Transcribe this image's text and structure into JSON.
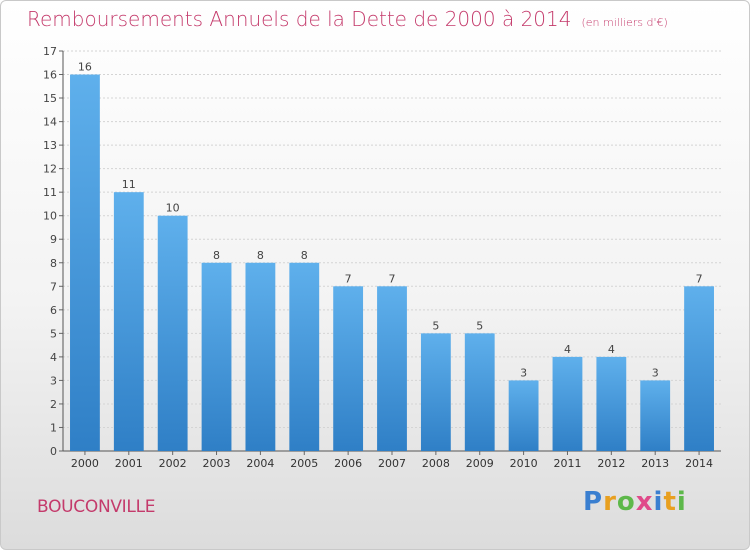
{
  "header": {
    "title": "Remboursements Annuels de la Dette de 2000 à 2014",
    "unit": "(en milliers d'€)"
  },
  "footer": {
    "commune": "BOUCONVILLE",
    "logo_letters": [
      "P",
      "r",
      "o",
      "x",
      "i",
      "t",
      "i"
    ],
    "logo_colors": [
      "#3a7fd0",
      "#e8a020",
      "#5db84a",
      "#e04a8a",
      "#3a7fd0",
      "#e8a020",
      "#5db84a"
    ]
  },
  "chart_data": {
    "type": "bar",
    "title": "Remboursements Annuels de la Dette de 2000 à 2014",
    "categories": [
      "2000",
      "2001",
      "2002",
      "2003",
      "2004",
      "2005",
      "2006",
      "2007",
      "2008",
      "2009",
      "2010",
      "2011",
      "2012",
      "2013",
      "2014"
    ],
    "values": [
      16,
      11,
      10,
      8,
      8,
      8,
      7,
      7,
      5,
      5,
      3,
      4,
      4,
      3,
      7
    ],
    "data_labels": [
      "16",
      "11",
      "10",
      "8",
      "8",
      "8",
      "7",
      "7",
      "5",
      "5",
      "3",
      "4",
      "4",
      "3",
      "7"
    ],
    "ylim": [
      0,
      17
    ],
    "yticks": [
      "0",
      "1",
      "2",
      "3",
      "4",
      "5",
      "6",
      "7",
      "8",
      "9",
      "10",
      "11",
      "12",
      "13",
      "14",
      "15",
      "16",
      "17"
    ],
    "grid": true,
    "bar_color": "#4a9de0"
  }
}
